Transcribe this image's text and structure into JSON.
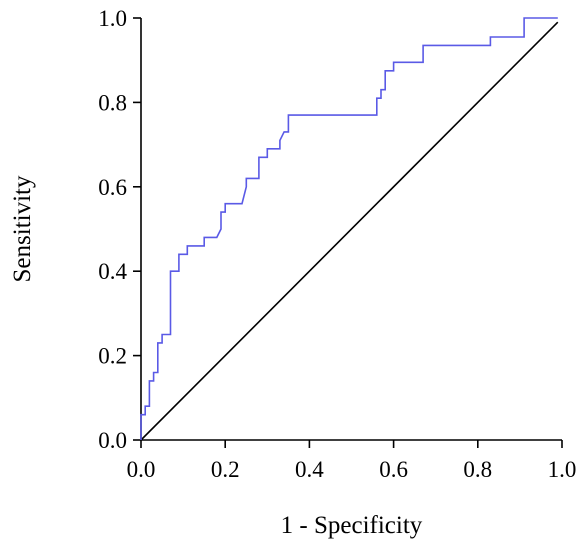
{
  "chart_data": {
    "type": "line",
    "title": "",
    "xlabel": "1 - Specificity",
    "ylabel": "Sensitivity",
    "xlim": [
      0,
      1
    ],
    "ylim": [
      0,
      1
    ],
    "x_ticks": [
      "0.0",
      "0.2",
      "0.4",
      "0.6",
      "0.8",
      "1.0"
    ],
    "y_ticks": [
      "0.0",
      "0.2",
      "0.4",
      "0.6",
      "0.8",
      "1.0"
    ],
    "grid": false,
    "legend": "none",
    "colors": {
      "roc": "#5a5ae6",
      "reference": "#000000"
    },
    "series": [
      {
        "x": [
          0,
          0,
          0.01,
          0.01,
          0.02,
          0.02,
          0.03,
          0.03,
          0.04,
          0.04,
          0.05,
          0.05,
          0.07,
          0.07,
          0.09,
          0.09,
          0.11,
          0.11,
          0.15,
          0.15,
          0.18,
          0.19,
          0.19,
          0.2,
          0.2,
          0.24,
          0.25,
          0.25,
          0.28,
          0.28,
          0.3,
          0.3,
          0.33,
          0.33,
          0.34,
          0.35,
          0.35,
          0.56,
          0.56,
          0.57,
          0.57,
          0.58,
          0.58,
          0.6,
          0.6,
          0.67,
          0.67,
          0.83,
          0.83,
          0.91,
          0.91,
          0.99
        ],
        "y": [
          0,
          0.06,
          0.06,
          0.08,
          0.08,
          0.14,
          0.14,
          0.16,
          0.16,
          0.23,
          0.23,
          0.25,
          0.25,
          0.4,
          0.4,
          0.44,
          0.44,
          0.46,
          0.46,
          0.48,
          0.48,
          0.5,
          0.54,
          0.54,
          0.56,
          0.56,
          0.6,
          0.62,
          0.62,
          0.67,
          0.67,
          0.69,
          0.69,
          0.71,
          0.73,
          0.73,
          0.77,
          0.77,
          0.81,
          0.81,
          0.83,
          0.83,
          0.875,
          0.875,
          0.895,
          0.895,
          0.935,
          0.935,
          0.955,
          0.955,
          1.0,
          1.0
        ]
      },
      {
        "x": [
          0,
          0.99
        ],
        "y": [
          0,
          0.99
        ]
      }
    ]
  }
}
